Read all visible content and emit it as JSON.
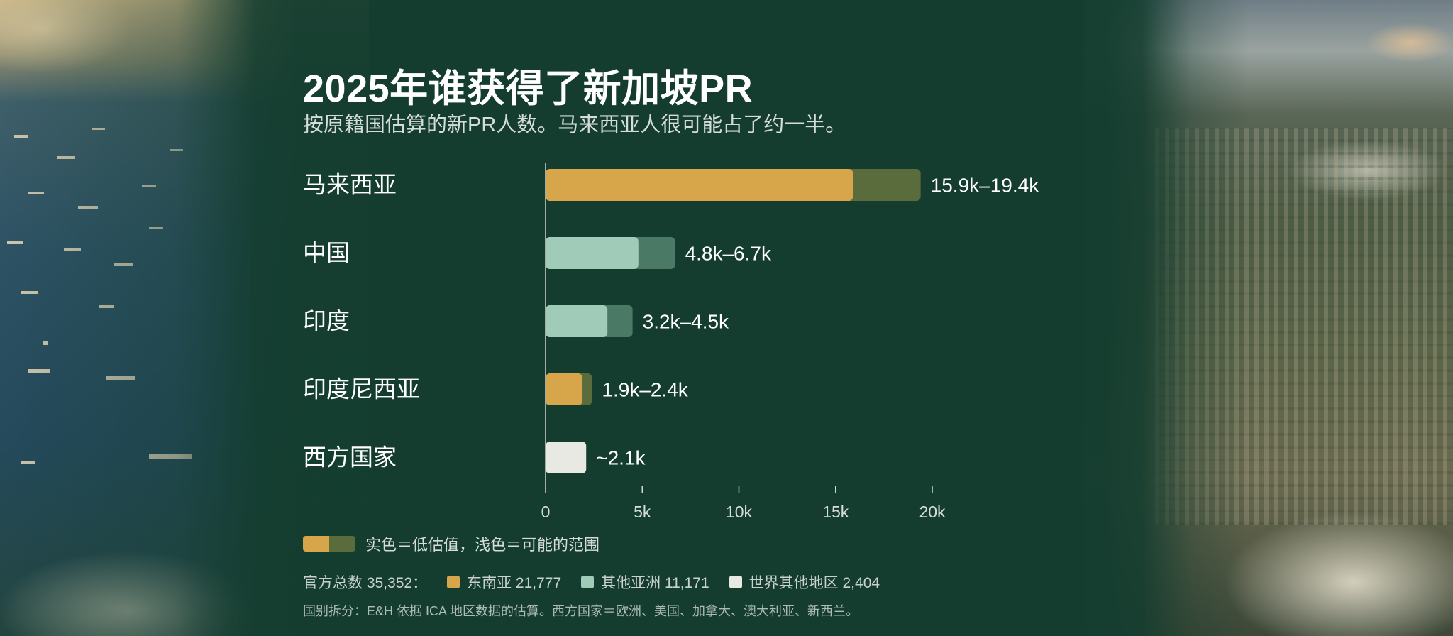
{
  "header": {
    "title": "2025年谁获得了新加坡PR",
    "subtitle": "按原籍国估算的新PR人数。马来西亚人很可能占了约一半。"
  },
  "chart_data": {
    "type": "bar",
    "orientation": "horizontal",
    "categories": [
      "马来西亚",
      "中国",
      "印度",
      "印度尼西亚",
      "西方国家"
    ],
    "low": [
      15.9,
      4.8,
      3.2,
      1.9,
      2.1
    ],
    "high": [
      19.4,
      6.7,
      4.5,
      2.4,
      2.1
    ],
    "value_labels": [
      "15.9k–19.4k",
      "4.8k–6.7k",
      "3.2k–4.5k",
      "1.9k–2.4k",
      "~2.1k"
    ],
    "region": [
      "sea",
      "asia",
      "asia",
      "sea",
      "row"
    ],
    "xlim": [
      0,
      20
    ],
    "xticks": [
      0,
      5,
      10,
      15,
      20
    ],
    "xtick_labels": [
      "0",
      "5k",
      "10k",
      "15k",
      "20k"
    ],
    "grid": false,
    "colors": {
      "sea_low": "#d7a64a",
      "sea_high": "#5a6b3c",
      "asia_low": "#9fcbb8",
      "asia_high": "#4a7a65",
      "row_low": "#e9e9e3",
      "row_high": "#e9e9e3"
    }
  },
  "legend": {
    "range_note": "实色＝低估值，浅色＝可能的范围"
  },
  "totals": {
    "label": "官方总数 35,352：",
    "items": [
      {
        "label": "东南亚 21,777",
        "color": "#d7a64a"
      },
      {
        "label": "其他亚洲 11,171",
        "color": "#9fcbb8"
      },
      {
        "label": "世界其他地区 2,404",
        "color": "#e9e9e3"
      }
    ]
  },
  "footnote": "国别拆分：E&H 依据 ICA 地区数据的估算。西方国家＝欧洲、美国、加拿大、澳大利亚、新西兰。"
}
